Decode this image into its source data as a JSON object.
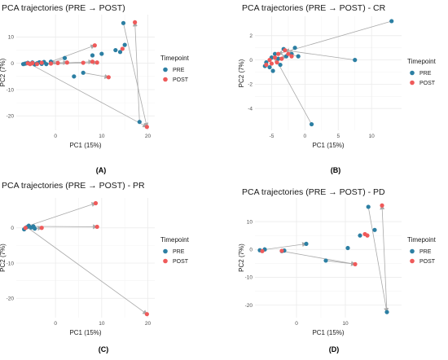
{
  "legend": {
    "title": "Timepoint",
    "items": [
      {
        "label": "PRE",
        "color": "#2c7fa3"
      },
      {
        "label": "POST",
        "color": "#ef5a5a"
      }
    ]
  },
  "chart_data": [
    {
      "type": "scatter",
      "panel": "A",
      "caption": "(A)",
      "title": "PCA trajectories (PRE → POST)",
      "xlabel": "PC1 (15%)",
      "ylabel": "PC2 (7%)",
      "xlim": [
        -8.5,
        21.5
      ],
      "ylim": [
        -25.5,
        18.5
      ],
      "xticks": [
        0,
        10,
        20
      ],
      "yticks": [
        10,
        0,
        -10,
        -20
      ],
      "grid": true,
      "legend_position": "right",
      "series": [
        {
          "name": "PRE",
          "color": "#2c7fa3",
          "points": [
            [
              -7,
              -0.3
            ],
            [
              -6.5,
              -0.1
            ],
            [
              -6,
              0.2
            ],
            [
              -5.5,
              -0.2
            ],
            [
              -5,
              0.3
            ],
            [
              -4.5,
              -0.4
            ],
            [
              -4,
              0
            ],
            [
              -3.5,
              0.4
            ],
            [
              -3,
              -0.2
            ],
            [
              -2.5,
              0.5
            ],
            [
              -2,
              -0.3
            ],
            [
              -1,
              0.6
            ],
            [
              2,
              2
            ],
            [
              4,
              -5
            ],
            [
              6,
              -3.6
            ],
            [
              8,
              3
            ],
            [
              10,
              3.6
            ],
            [
              13,
              5
            ],
            [
              14,
              4.3
            ],
            [
              15,
              7
            ],
            [
              14.7,
              15.3
            ],
            [
              18.2,
              -22.3
            ]
          ]
        },
        {
          "name": "POST",
          "color": "#ef5a5a",
          "points": [
            [
              -6,
              0
            ],
            [
              -5.5,
              -0.3
            ],
            [
              -5,
              0.1
            ],
            [
              -4,
              -0.3
            ],
            [
              -3,
              0.2
            ],
            [
              -1,
              -0.1
            ],
            [
              0.5,
              0.1
            ],
            [
              2.5,
              0.3
            ],
            [
              6,
              0.2
            ],
            [
              8,
              0.6
            ],
            [
              8.5,
              6.8
            ],
            [
              9,
              0.3
            ],
            [
              11.5,
              -5.3
            ],
            [
              14.5,
              5.5
            ],
            [
              17.2,
              15.6
            ],
            [
              19.8,
              -24.2
            ]
          ]
        }
      ],
      "trajectories": [
        [
          [
            -7,
            -0.3
          ],
          [
            -6,
            0
          ]
        ],
        [
          [
            -5,
            0.3
          ],
          [
            -5.5,
            -0.3
          ]
        ],
        [
          [
            -4,
            0
          ],
          [
            2.5,
            0.3
          ]
        ],
        [
          [
            -3,
            -0.2
          ],
          [
            8,
            0.6
          ]
        ],
        [
          [
            -2,
            -0.3
          ],
          [
            9,
            0.3
          ]
        ],
        [
          [
            -1,
            0.6
          ],
          [
            8.5,
            6.8
          ]
        ],
        [
          [
            2,
            2
          ],
          [
            -1,
            -0.1
          ]
        ],
        [
          [
            6,
            -3.6
          ],
          [
            11.5,
            -5.3
          ]
        ],
        [
          [
            14.7,
            15.3
          ],
          [
            19.8,
            -24.2
          ]
        ],
        [
          [
            18.2,
            -22.3
          ],
          [
            17.2,
            15.6
          ]
        ],
        [
          [
            -6,
            0.2
          ],
          [
            19.8,
            -24.2
          ]
        ]
      ]
    },
    {
      "type": "scatter",
      "panel": "B",
      "caption": "(B)",
      "title": "PCA trajectories (PRE → POST) - CR",
      "xlabel": "PC1 (15%)",
      "ylabel": "PC2 (7%)",
      "xlim": [
        -7.5,
        14.5
      ],
      "ylim": [
        -5.8,
        3.6
      ],
      "xticks": [
        -5,
        0,
        5,
        10
      ],
      "yticks": [
        2,
        0,
        -2,
        -4
      ],
      "grid": true,
      "legend_position": "right",
      "series": [
        {
          "name": "PRE",
          "color": "#2c7fa3",
          "points": [
            [
              -6,
              -0.5
            ],
            [
              -5.8,
              -0.2
            ],
            [
              -5.3,
              -0.6
            ],
            [
              -5,
              0.2
            ],
            [
              -4.8,
              -0.9
            ],
            [
              -4.5,
              0.5
            ],
            [
              -4,
              0.1
            ],
            [
              -3.7,
              -0.4
            ],
            [
              -3.2,
              0.9
            ],
            [
              -2.8,
              0.3
            ],
            [
              -2,
              0.5
            ],
            [
              -1.5,
              1
            ],
            [
              -1,
              0.3
            ],
            [
              7.5,
              0
            ],
            [
              13,
              3.2
            ],
            [
              1,
              -5.3
            ]
          ]
        },
        {
          "name": "POST",
          "color": "#ef5a5a",
          "points": [
            [
              -5.8,
              -0.4
            ],
            [
              -5.3,
              0
            ],
            [
              -5,
              -0.3
            ],
            [
              -4.5,
              0.2
            ],
            [
              -4.2,
              -0.2
            ],
            [
              -4,
              0.5
            ],
            [
              -3.5,
              0.1
            ],
            [
              -3,
              0.8
            ],
            [
              -2.5,
              0.5
            ],
            [
              -2,
              0.3
            ]
          ]
        }
      ],
      "trajectories": [
        [
          [
            13,
            3.2
          ],
          [
            -4,
            0.5
          ]
        ],
        [
          [
            7.5,
            0
          ],
          [
            -3,
            0.8
          ]
        ],
        [
          [
            1,
            -5.3
          ],
          [
            -4.5,
            0.2
          ]
        ],
        [
          [
            -1.5,
            1
          ],
          [
            -3.5,
            0.1
          ]
        ],
        [
          [
            -1,
            0.3
          ],
          [
            -2.5,
            0.5
          ]
        ]
      ]
    },
    {
      "type": "scatter",
      "panel": "C",
      "caption": "(C)",
      "title": "PCA trajectories (PRE → POST) - PR",
      "xlabel": "PC1 (15%)",
      "ylabel": "PC2 (7%)",
      "xlim": [
        -8.5,
        21.5
      ],
      "ylim": [
        -25.5,
        8.5
      ],
      "xticks": [
        0,
        10,
        20
      ],
      "yticks": [
        0,
        -10,
        -20
      ],
      "grid": true,
      "legend_position": "right",
      "series": [
        {
          "name": "PRE",
          "color": "#2c7fa3",
          "points": [
            [
              -6.8,
              -0.4
            ],
            [
              -6.2,
              0.2
            ],
            [
              -5.8,
              0.6
            ],
            [
              -5.3,
              0.1
            ],
            [
              -4.8,
              0.4
            ],
            [
              -4.5,
              -0.2
            ]
          ]
        },
        {
          "name": "POST",
          "color": "#ef5a5a",
          "points": [
            [
              -6.5,
              0
            ],
            [
              -3,
              0
            ],
            [
              9,
              0.3
            ],
            [
              8.7,
              7
            ],
            [
              19.8,
              -24.5
            ]
          ]
        }
      ],
      "trajectories": [
        [
          [
            -5.8,
            0.6
          ],
          [
            8.7,
            7
          ]
        ],
        [
          [
            -4.8,
            0.4
          ],
          [
            9,
            0.3
          ]
        ],
        [
          [
            -6.2,
            0.2
          ],
          [
            19.8,
            -24.5
          ]
        ],
        [
          [
            -4.5,
            -0.2
          ],
          [
            -3,
            0
          ]
        ]
      ]
    },
    {
      "type": "scatter",
      "panel": "D",
      "caption": "(D)",
      "title": "PCA trajectories (PRE → POST) - PD",
      "xlabel": "PC1 (15%)",
      "ylabel": "PC2 (7%)",
      "xlim": [
        -8.5,
        21.5
      ],
      "ylim": [
        -24.5,
        18.5
      ],
      "xticks": [
        0,
        10
      ],
      "yticks": [
        10,
        0,
        -10,
        -20
      ],
      "grid": true,
      "legend_position": "right",
      "series": [
        {
          "name": "PRE",
          "color": "#2c7fa3",
          "points": [
            [
              -7.5,
              -0.3
            ],
            [
              -6.5,
              0
            ],
            [
              -3,
              -0.6
            ],
            [
              -2.5,
              -0.4
            ],
            [
              2,
              2
            ],
            [
              6,
              -4
            ],
            [
              10.5,
              0.5
            ],
            [
              13,
              5
            ],
            [
              14.7,
              15.3
            ],
            [
              16,
              7
            ],
            [
              18.5,
              -22.5
            ]
          ]
        },
        {
          "name": "POST",
          "color": "#ef5a5a",
          "points": [
            [
              -7,
              -0.6
            ],
            [
              -3,
              -0.5
            ],
            [
              12,
              -5.3
            ],
            [
              14,
              5.5
            ],
            [
              14.5,
              5
            ],
            [
              17.5,
              15.8
            ]
          ]
        }
      ],
      "trajectories": [
        [
          [
            -7.5,
            -0.3
          ],
          [
            2,
            2
          ]
        ],
        [
          [
            -6.5,
            0
          ],
          [
            -7,
            -0.6
          ]
        ],
        [
          [
            -3,
            -0.6
          ],
          [
            12,
            -5.3
          ]
        ],
        [
          [
            6,
            -4
          ],
          [
            12,
            -5.3
          ]
        ],
        [
          [
            14.7,
            15.3
          ],
          [
            18.5,
            -22.5
          ]
        ],
        [
          [
            18.5,
            -22.5
          ],
          [
            17.5,
            15.8
          ]
        ]
      ]
    }
  ]
}
